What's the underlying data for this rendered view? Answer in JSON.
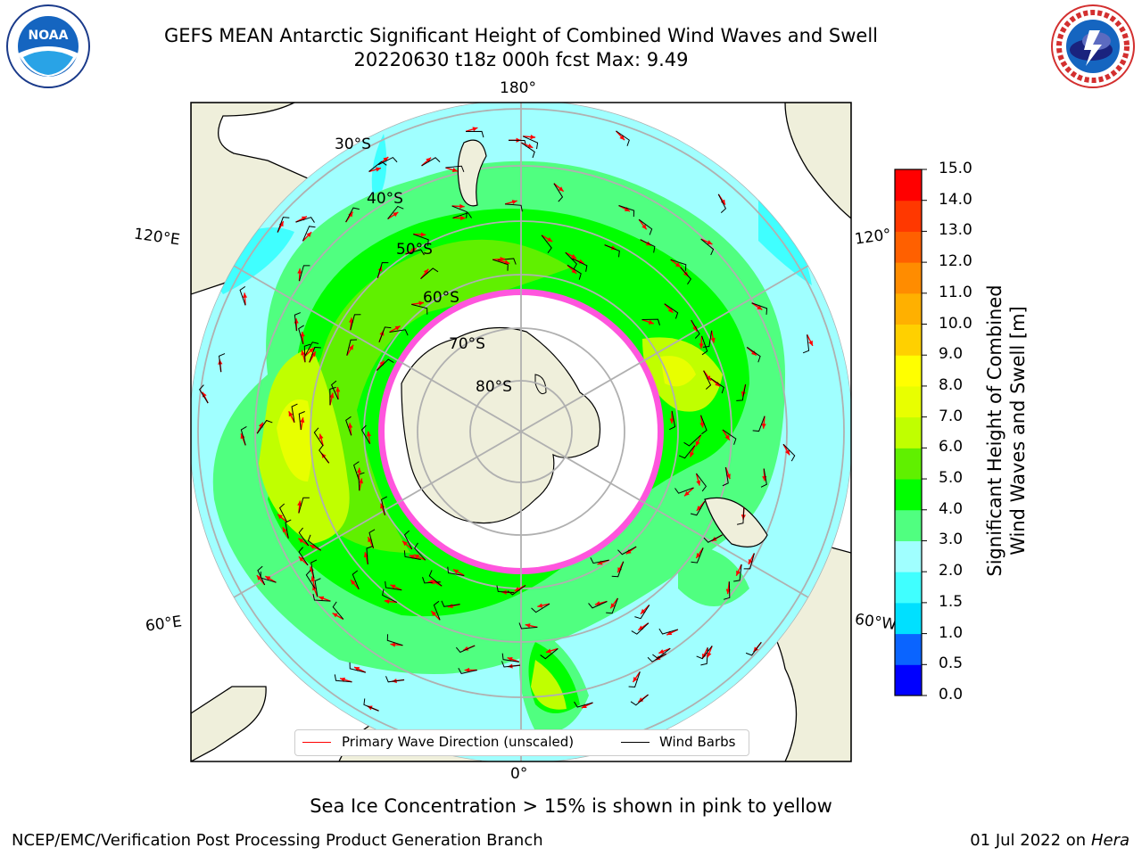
{
  "title_line1": "GEFS MEAN Antarctic Significant Height of Combined Wind Waves and Swell",
  "title_line2": "20220630 t18z 000h fcst   Max: 9.49",
  "longitude_labels": {
    "top": "180°",
    "bottom": "0°",
    "left_upper": "120°E",
    "left_lower": "60°E",
    "right_upper": "120°",
    "right_lower": "60°W"
  },
  "latitude_labels": [
    "30°S",
    "40°S",
    "50°S",
    "60°S",
    "70°S",
    "80°S"
  ],
  "legend": {
    "wave": "Primary Wave Direction (unscaled)",
    "wind": "Wind Barbs"
  },
  "colorbar": {
    "label_line1": "Significant Height of Combined",
    "label_line2": "Wind Waves and Swell [m]",
    "ticks": [
      "0.0",
      "0.5",
      "1.0",
      "1.5",
      "2.0",
      "3.0",
      "4.0",
      "5.0",
      "6.0",
      "7.0",
      "8.0",
      "9.0",
      "10.0",
      "11.0",
      "12.0",
      "13.0",
      "14.0",
      "15.0"
    ],
    "colors": [
      "#0000ff",
      "#0a64ff",
      "#00e0ff",
      "#40ffff",
      "#a0ffff",
      "#50ff80",
      "#00ff00",
      "#60f000",
      "#c0ff00",
      "#e8ff00",
      "#ffff00",
      "#ffd000",
      "#ffb000",
      "#ff8c00",
      "#ff6000",
      "#ff3800",
      "#ff0000"
    ]
  },
  "footnote": "Sea Ice Concentration > 15% is shown in pink to yellow",
  "credit": "NCEP/EMC/Verification Post Processing Product Generation Branch",
  "date_prefix": "01 Jul 2022 on ",
  "date_machine": "Hera"
}
